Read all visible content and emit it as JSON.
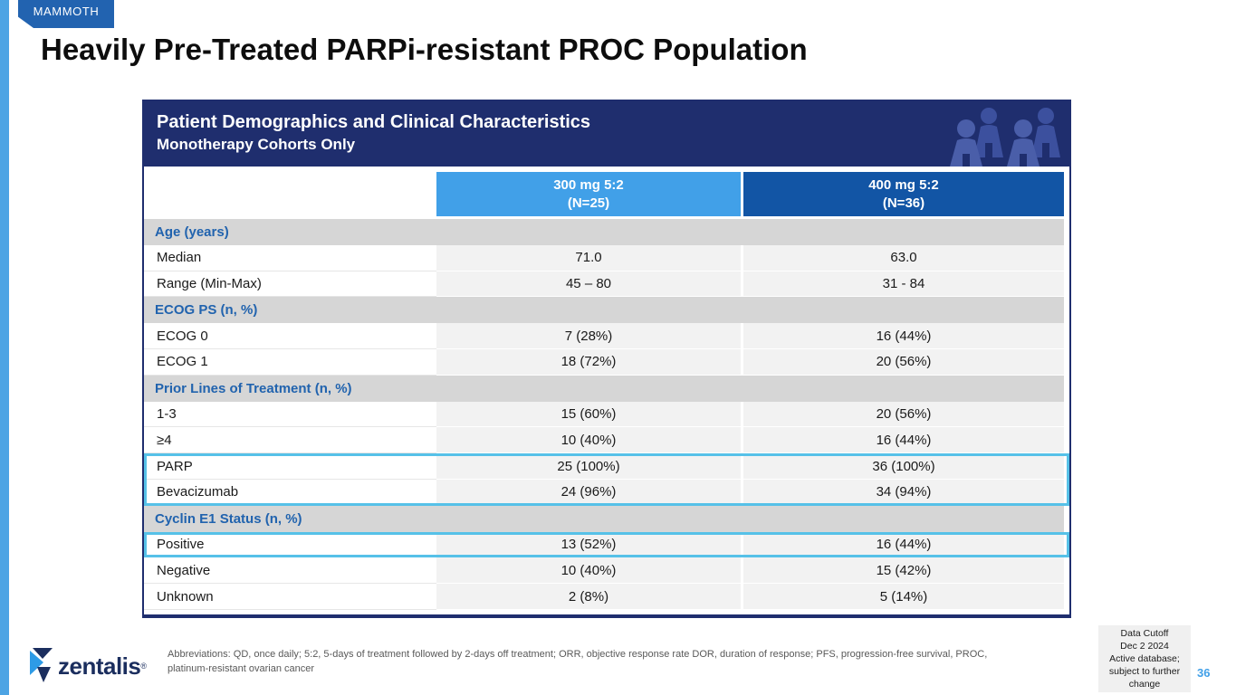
{
  "badge": {
    "label": "MAMMOTH"
  },
  "slide": {
    "title": "Heavily Pre-Treated PARPi-resistant PROC Population",
    "page_number": "36"
  },
  "table": {
    "title": "Patient Demographics and Clinical Characteristics",
    "subtitle": "Monotherapy Cohorts Only",
    "columns": [
      {
        "label_line1": "300 mg 5:2",
        "label_line2": "(N=25)",
        "color": "#41a0e8"
      },
      {
        "label_line1": "400 mg 5:2",
        "label_line2": "(N=36)",
        "color": "#1255a5"
      }
    ],
    "rows": [
      {
        "type": "section",
        "label": "Age (years)"
      },
      {
        "type": "data",
        "label": "Median",
        "values": [
          "71.0",
          "63.0"
        ]
      },
      {
        "type": "data",
        "label": "Range (Min-Max)",
        "values": [
          "45 – 80",
          "31 - 84"
        ]
      },
      {
        "type": "section",
        "label": "ECOG PS (n, %)"
      },
      {
        "type": "data",
        "label": "ECOG 0",
        "values": [
          "7 (28%)",
          "16 (44%)"
        ]
      },
      {
        "type": "data",
        "label": "ECOG 1",
        "values": [
          "18 (72%)",
          "20 (56%)"
        ]
      },
      {
        "type": "section",
        "label": "Prior Lines of Treatment (n, %)"
      },
      {
        "type": "data",
        "label": "1-3",
        "values": [
          "15 (60%)",
          "20 (56%)"
        ]
      },
      {
        "type": "data",
        "label": "≥4",
        "values": [
          "10 (40%)",
          "16 (44%)"
        ]
      },
      {
        "type": "data",
        "label": "PARP",
        "values": [
          "25 (100%)",
          "36 (100%)"
        ],
        "highlight": "start"
      },
      {
        "type": "data",
        "label": "Bevacizumab",
        "values": [
          "24 (96%)",
          "34 (94%)"
        ],
        "highlight": "end"
      },
      {
        "type": "section",
        "label": "Cyclin E1 Status (n, %)"
      },
      {
        "type": "data",
        "label": "Positive",
        "values": [
          "13 (52%)",
          "16 (44%)"
        ],
        "highlight": "single"
      },
      {
        "type": "data",
        "label": "Negative",
        "values": [
          "10 (40%)",
          "15 (42%)"
        ]
      },
      {
        "type": "data",
        "label": "Unknown",
        "values": [
          "2 (8%)",
          "5 (14%)"
        ]
      }
    ]
  },
  "footer": {
    "logo_text": "zentalis",
    "logo_trademark": "®",
    "abbreviations": "Abbreviations: QD, once daily; 5:2, 5-days of treatment followed by 2-days off treatment; ORR, objective response rate DOR, duration of response; PFS, progression-free survival, PROC, platinum-resistant ovarian cancer",
    "data_cutoff_lines": [
      "Data Cutoff",
      "Dec 2 2024",
      "Active database;",
      "subject to further",
      "change"
    ]
  },
  "colors": {
    "header_navy": "#1f2e6e",
    "column_a_blue": "#41a0e8",
    "column_b_blue": "#1255a5",
    "highlight_cyan": "#56c1e8",
    "section_text_blue": "#2163ae",
    "badge_blue": "#2263b0",
    "left_bar_blue": "#4da4e4",
    "page_number_blue": "#41a0e8"
  }
}
